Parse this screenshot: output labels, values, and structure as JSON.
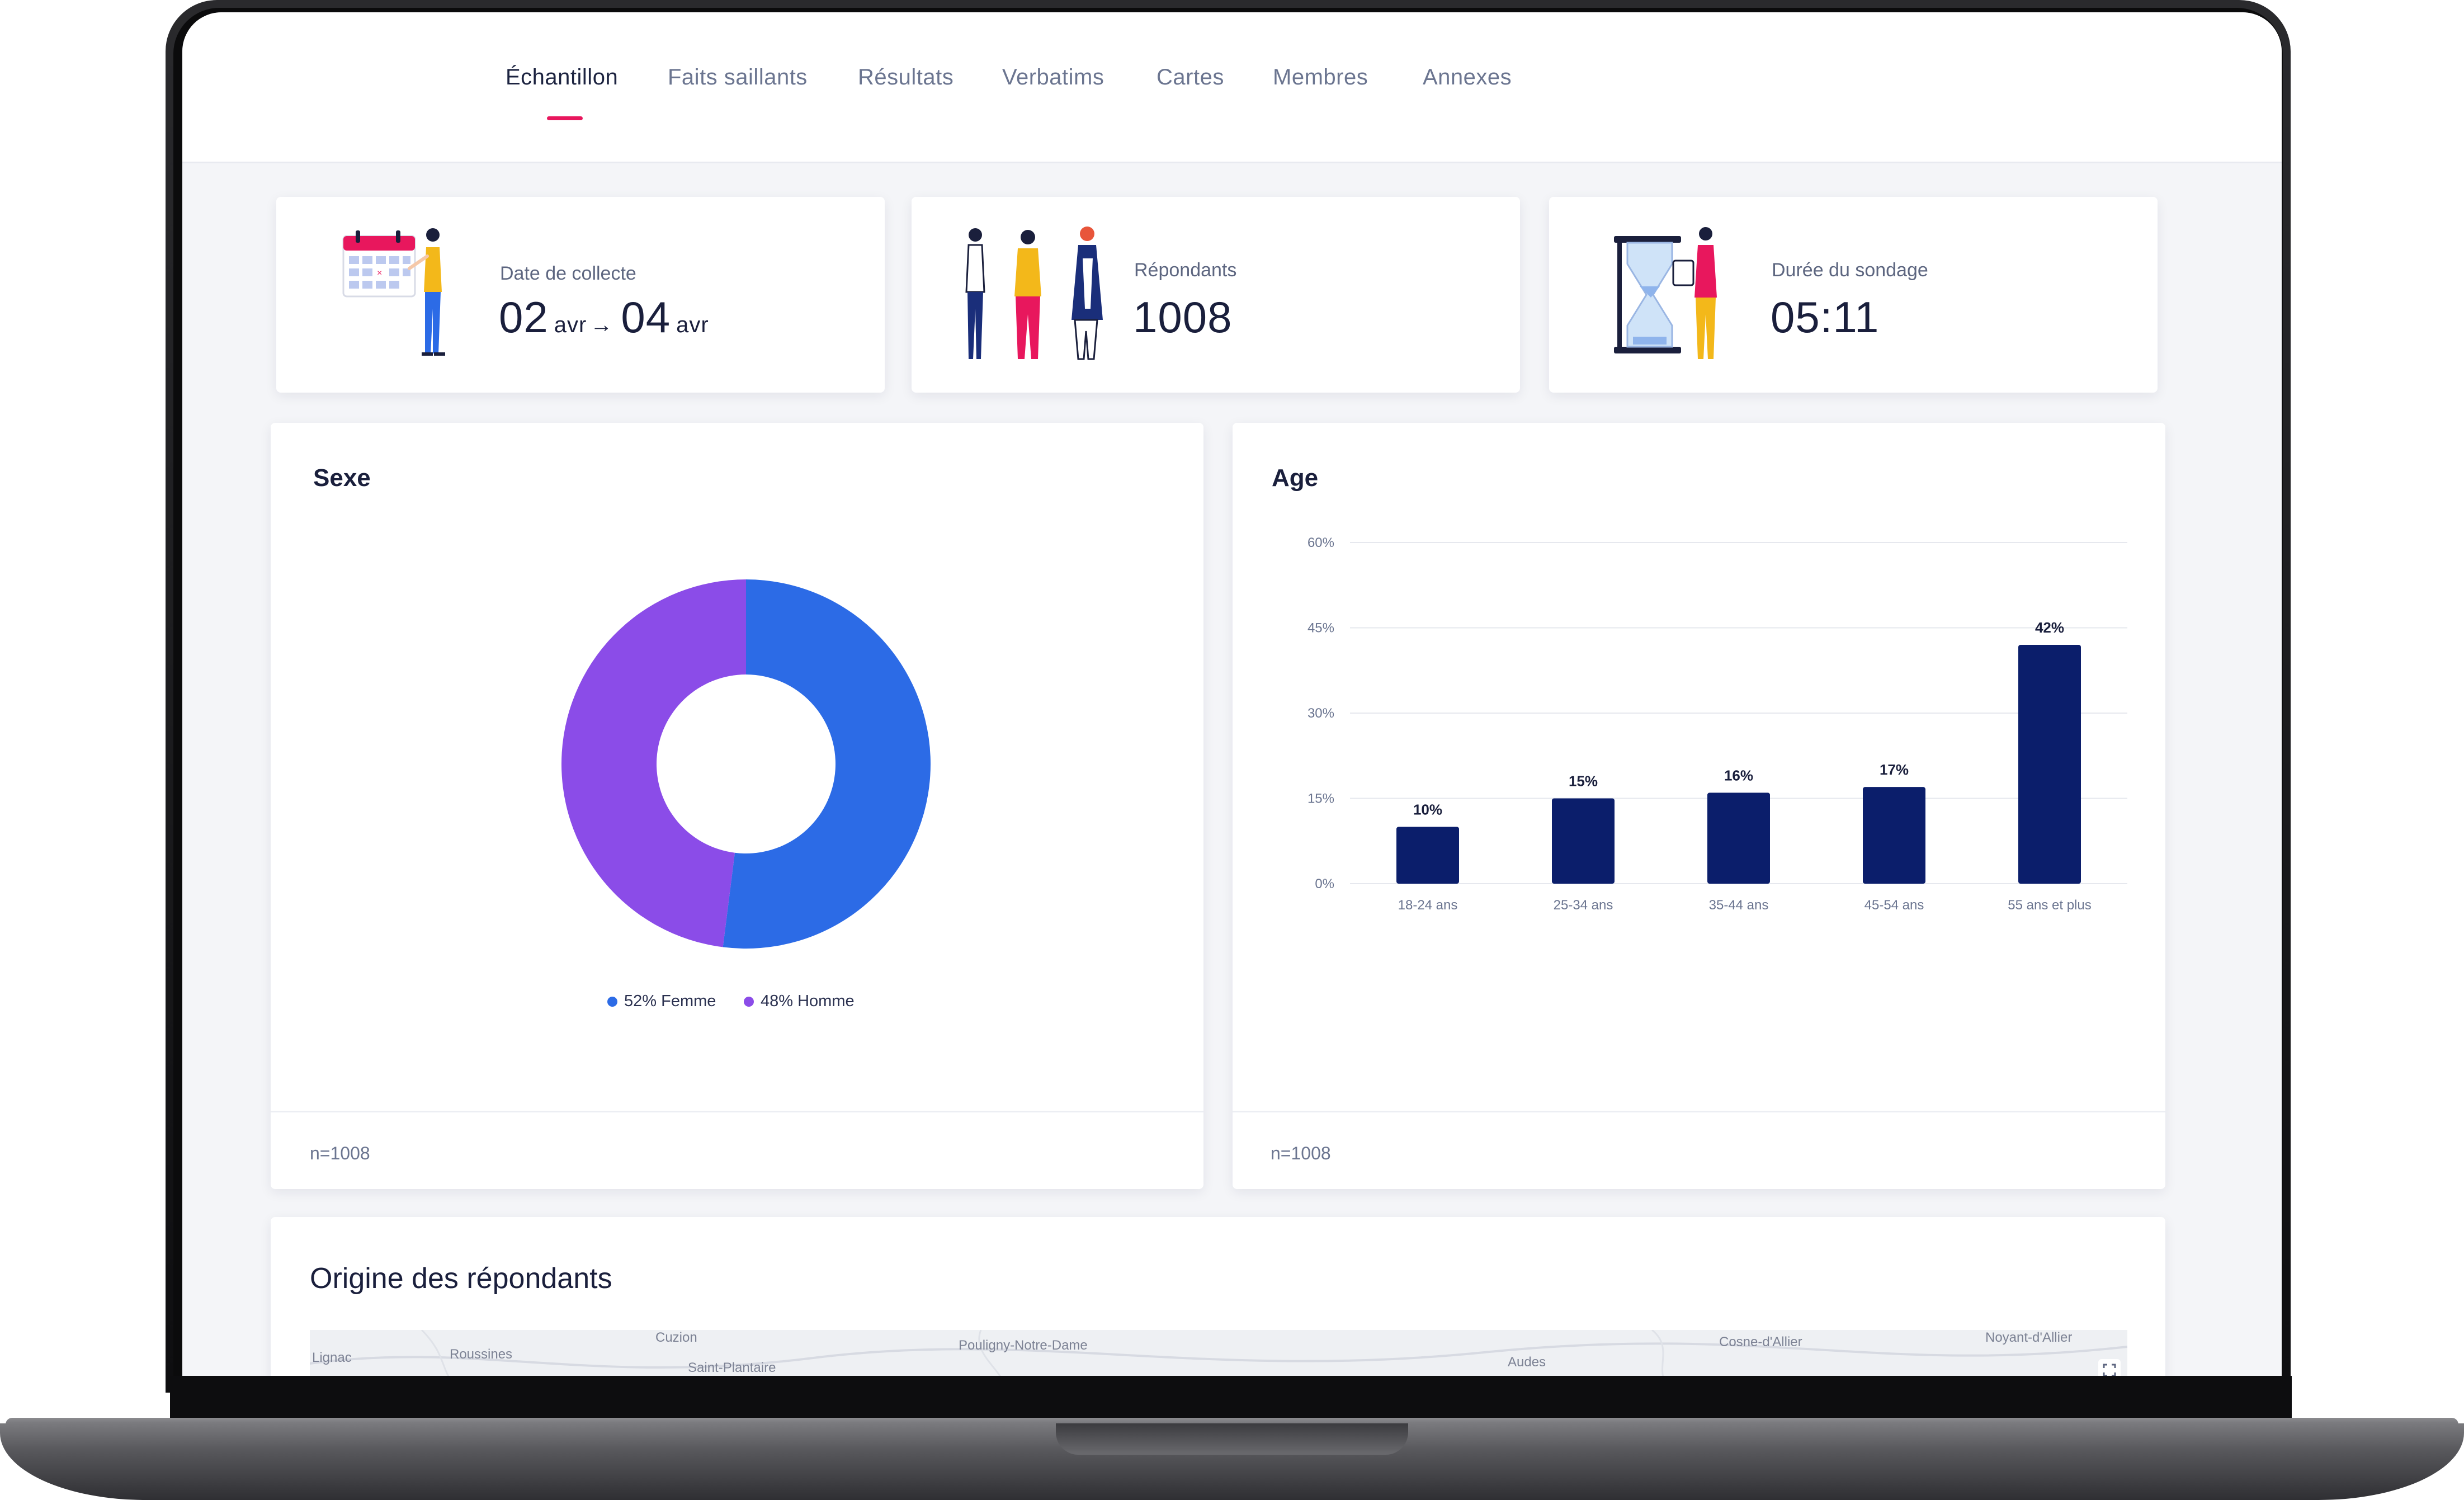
{
  "colors": {
    "accent": "#e8175d",
    "navy": "#0b1e6b",
    "blue": "#2c6be6",
    "purple": "#8b4ce8"
  },
  "nav": {
    "tabs": [
      {
        "label": "Échantillon",
        "active": true
      },
      {
        "label": "Faits saillants"
      },
      {
        "label": "Résultats"
      },
      {
        "label": "Verbatims"
      },
      {
        "label": "Cartes"
      },
      {
        "label": "Membres"
      },
      {
        "label": "Annexes"
      }
    ]
  },
  "stats": {
    "collection": {
      "label": "Date de collecte",
      "start": "02",
      "start_unit": "avr",
      "arrow": "→",
      "end": "04",
      "end_unit": "avr",
      "icon": "calendar-person-illustration"
    },
    "respondents": {
      "label": "Répondants",
      "value": "1008",
      "icon": "group-people-illustration"
    },
    "duration": {
      "label": "Durée du sondage",
      "value": "05:11",
      "icon": "hourglass-person-illustration"
    }
  },
  "sexe": {
    "title": "Sexe",
    "footer": "n=1008"
  },
  "age": {
    "title": "Age",
    "footer": "n=1008"
  },
  "origine": {
    "title": "Origine des répondants",
    "map_labels": [
      "Lignac",
      "Roussines",
      "Cuzion",
      "Saint-Plantaire",
      "Pouligny-Notre-Dame",
      "Audes",
      "Cosne-d'Allier",
      "Noyant-d'Allier"
    ]
  },
  "chart_data": [
    {
      "type": "pie",
      "title": "Sexe",
      "series": [
        {
          "name": "Femme",
          "value": 52,
          "color": "#2c6be6"
        },
        {
          "name": "Homme",
          "value": 48,
          "color": "#8b4ce8"
        }
      ],
      "legend_labels": [
        "52% Femme",
        "48% Homme"
      ],
      "legend": "bottom"
    },
    {
      "type": "bar",
      "title": "Age",
      "categories": [
        "18-24 ans",
        "25-34 ans",
        "35-44 ans",
        "45-54 ans",
        "55 ans et plus"
      ],
      "values": [
        10,
        15,
        16,
        17,
        42
      ],
      "value_labels": [
        "10%",
        "15%",
        "16%",
        "17%",
        "42%"
      ],
      "y_ticks": [
        "0%",
        "15%",
        "30%",
        "45%",
        "60%"
      ],
      "ylim": [
        0,
        60
      ],
      "grid": true,
      "color": "#0b1e6b"
    }
  ]
}
